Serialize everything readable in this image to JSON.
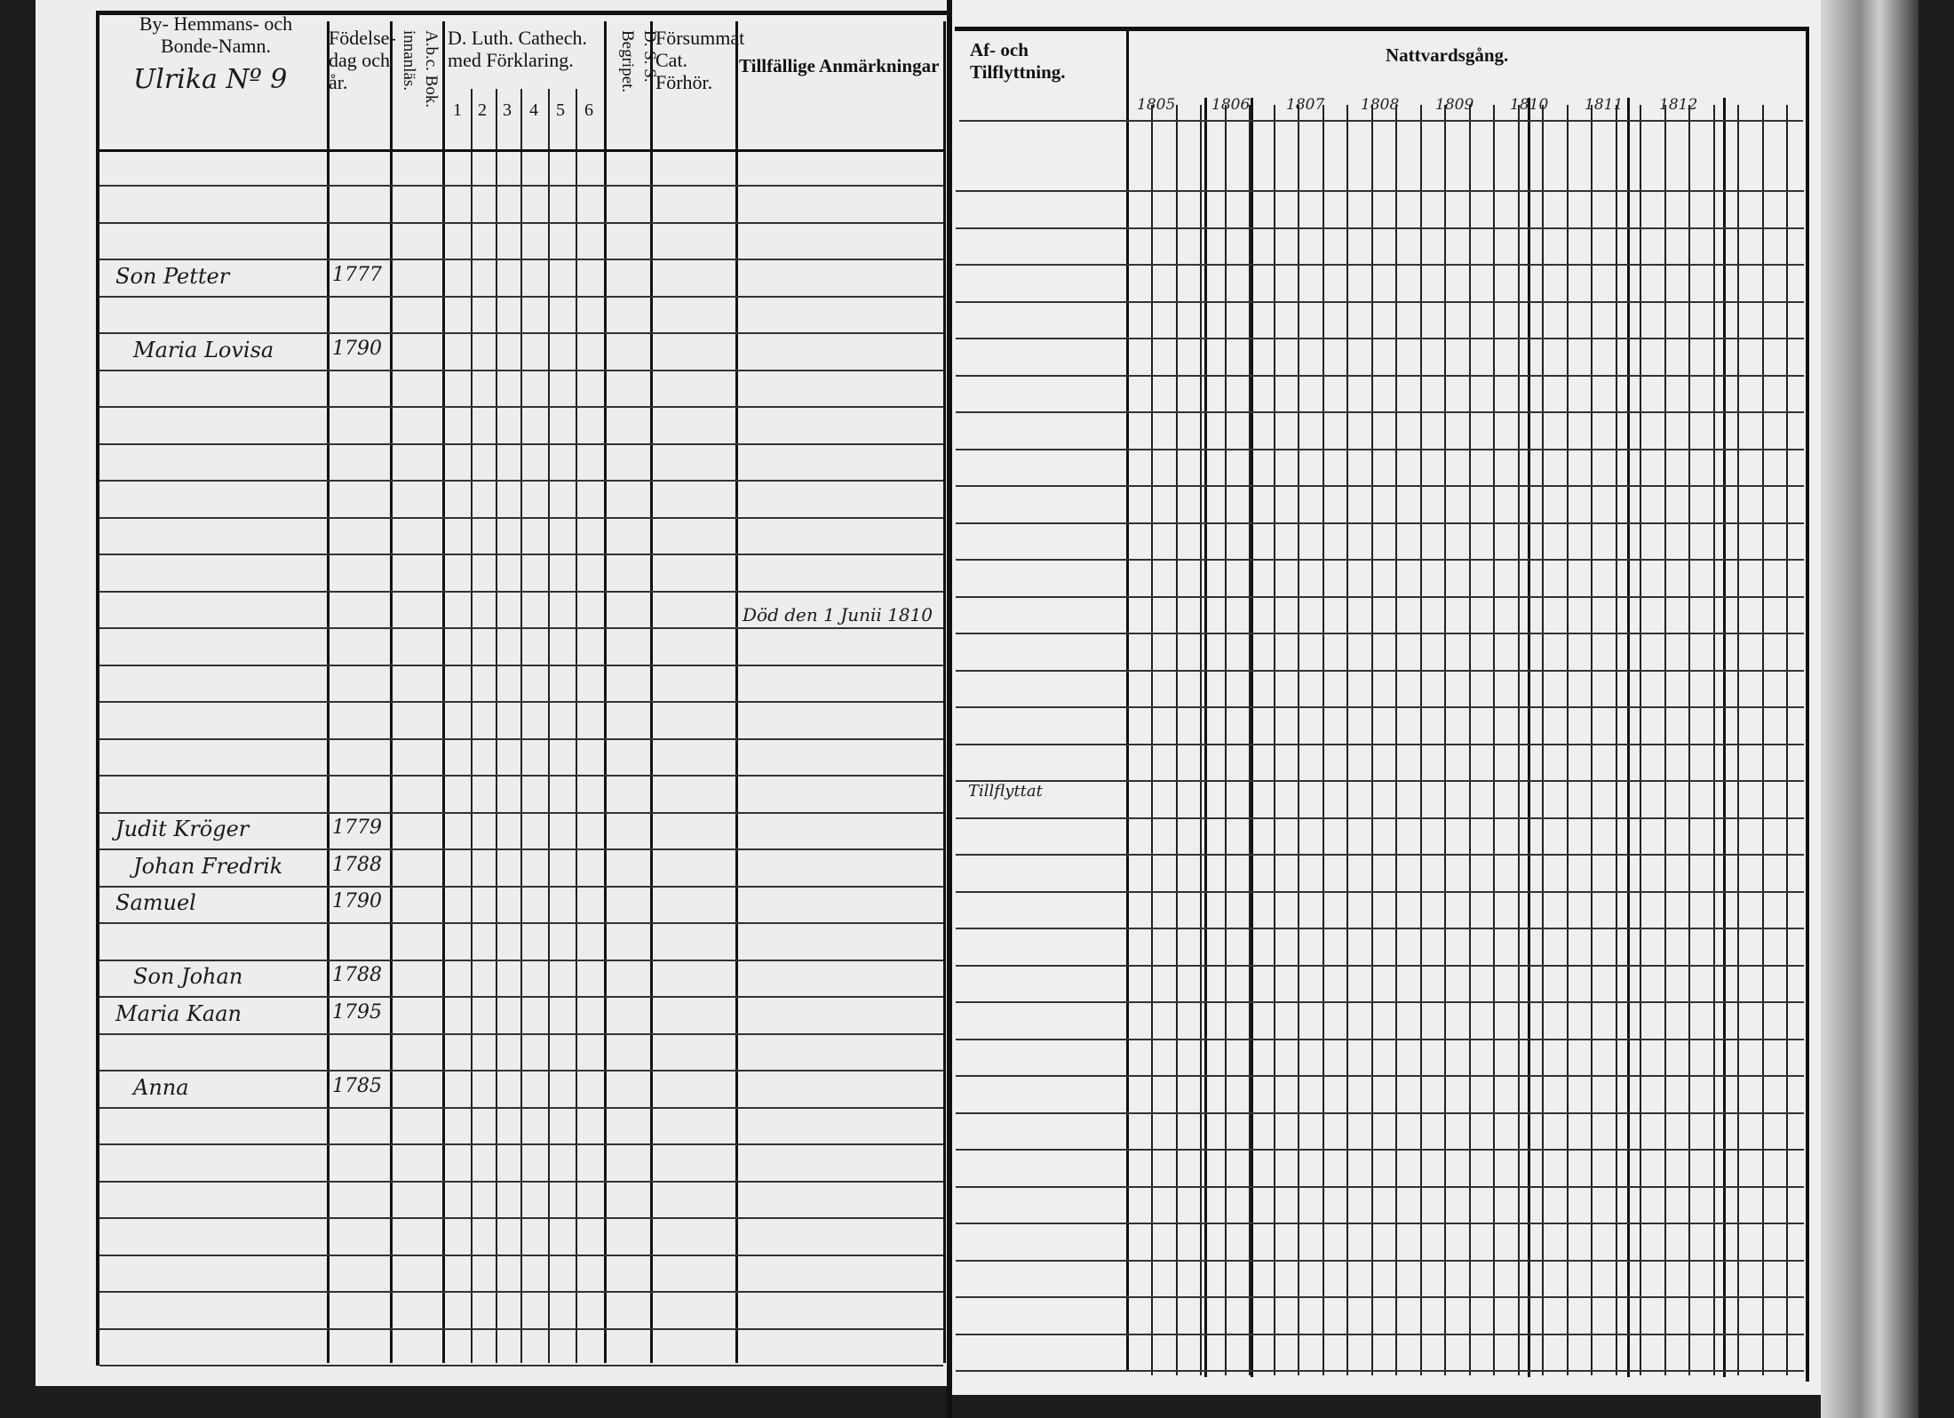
{
  "left_page": {
    "headers": {
      "name": "By- Hemmans- och Bonde-Namn.",
      "birth": "Födelse-dag och år.",
      "abc": "A.b.c. Bok. innanläs.",
      "catech": "D. Luth. Cathech. med Förklaring.",
      "catech_cols": [
        "1",
        "2",
        "3",
        "4",
        "5",
        "6"
      ],
      "dss": "D. S. S. Begripet.",
      "forsummat": "Försummat Cat. Förhör.",
      "anmarkningar": "Tillfällige Anmärkningar"
    },
    "handwritten_heading": "Ulrika Nº 9",
    "entries": [
      {
        "name": "Son Petter",
        "year": "1777"
      },
      {
        "name": "Maria Lovisa",
        "year": "1790"
      },
      {
        "name": "Judit Kröger",
        "year": "1779"
      },
      {
        "name": "Johan Fredrik",
        "year": "1788"
      },
      {
        "name": "Samuel",
        "year": "1790"
      },
      {
        "name": "Son Johan",
        "year": "1788"
      },
      {
        "name": "Maria Kaan",
        "year": "1795"
      },
      {
        "name": "Anna",
        "year": "1785"
      }
    ],
    "notes": [
      "Död den 1 Junii 1810",
      "Tillflyttat"
    ]
  },
  "right_page": {
    "headers": {
      "flyttning": "Af- och Tilflyttning.",
      "nattvard": "Nattvardsgång."
    },
    "years": [
      "1805",
      "1806",
      "1807",
      "1808",
      "1809",
      "1810",
      "1811",
      "1812"
    ]
  }
}
